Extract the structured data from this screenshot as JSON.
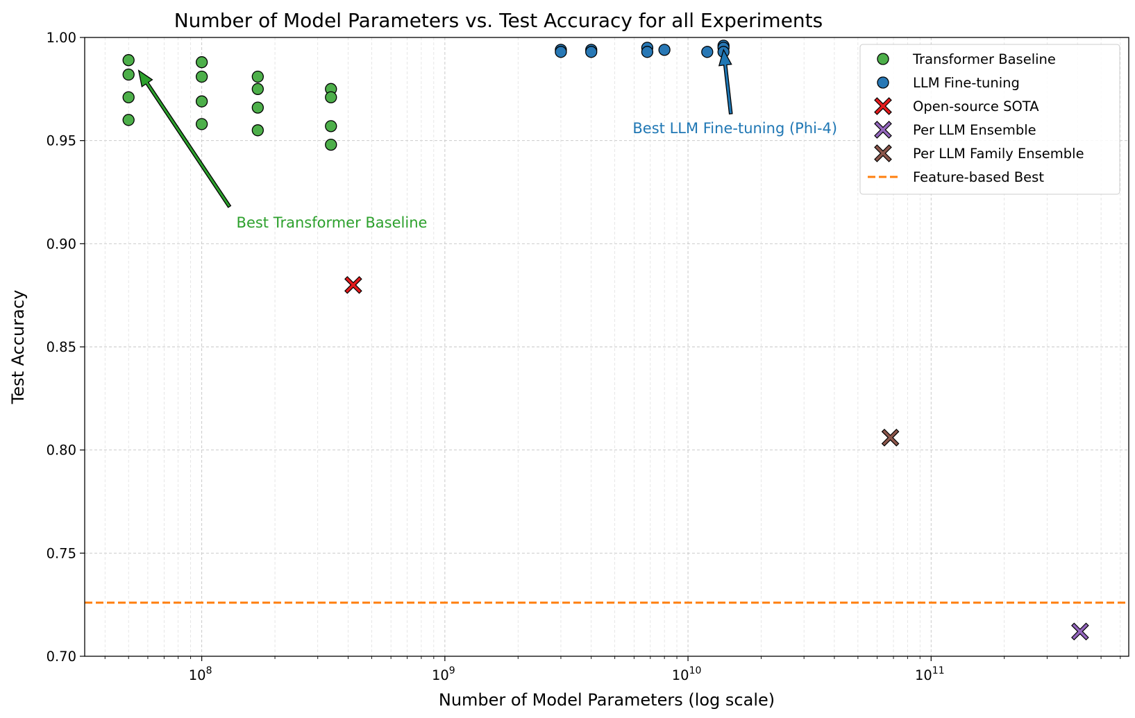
{
  "chart_data": {
    "type": "scatter",
    "title": "Number of Model Parameters vs. Test Accuracy for all Experiments",
    "xlabel": "Number of Model Parameters (log scale)",
    "ylabel": "Test Accuracy",
    "x_scale": "log",
    "xlim": [
      33000000,
      650000000000
    ],
    "ylim": [
      0.7,
      1.0
    ],
    "y_ticks": [
      0.7,
      0.75,
      0.8,
      0.85,
      0.9,
      0.95,
      1.0
    ],
    "y_tick_labels": [
      "0.70",
      "0.75",
      "0.80",
      "0.85",
      "0.90",
      "0.95",
      "1.00"
    ],
    "x_major_ticks": [
      {
        "value": 100000000,
        "base": "10",
        "exp": "8"
      },
      {
        "value": 1000000000,
        "base": "10",
        "exp": "9"
      },
      {
        "value": 10000000000,
        "base": "10",
        "exp": "10"
      },
      {
        "value": 100000000000,
        "base": "10",
        "exp": "11"
      }
    ],
    "grid": true,
    "legend_position": "top-right",
    "series": [
      {
        "name": "Transformer Baseline",
        "marker": "circle",
        "color": "#4daf4a",
        "points": [
          [
            50000000,
            0.989
          ],
          [
            50000000,
            0.982
          ],
          [
            50000000,
            0.971
          ],
          [
            50000000,
            0.96
          ],
          [
            100000000,
            0.988
          ],
          [
            100000000,
            0.981
          ],
          [
            100000000,
            0.969
          ],
          [
            100000000,
            0.958
          ],
          [
            170000000,
            0.981
          ],
          [
            170000000,
            0.975
          ],
          [
            170000000,
            0.966
          ],
          [
            170000000,
            0.955
          ],
          [
            340000000,
            0.975
          ],
          [
            340000000,
            0.971
          ],
          [
            340000000,
            0.957
          ],
          [
            340000000,
            0.948
          ]
        ]
      },
      {
        "name": "LLM Fine-tuning",
        "marker": "circle",
        "color": "#2878b5",
        "points": [
          [
            3000000000,
            0.994
          ],
          [
            3000000000,
            0.993
          ],
          [
            4000000000,
            0.994
          ],
          [
            4000000000,
            0.993
          ],
          [
            6800000000,
            0.995
          ],
          [
            6800000000,
            0.993
          ],
          [
            8000000000,
            0.994
          ],
          [
            12000000000,
            0.993
          ],
          [
            14000000000,
            0.996
          ],
          [
            14000000000,
            0.995
          ],
          [
            14000000000,
            0.993
          ]
        ]
      },
      {
        "name": "Open-source SOTA",
        "marker": "x",
        "color": "#e41a1c",
        "points": [
          [
            420000000,
            0.88
          ]
        ]
      },
      {
        "name": "Per LLM Ensemble",
        "marker": "x",
        "color": "#9467bd",
        "points": [
          [
            410000000000,
            0.712
          ]
        ]
      },
      {
        "name": "Per LLM Family Ensemble",
        "marker": "x",
        "color": "#8c564b",
        "points": [
          [
            68000000000,
            0.806
          ]
        ]
      }
    ],
    "reference_lines": [
      {
        "name": "Feature-based Best",
        "y": 0.726,
        "color": "#ff7f0e",
        "style": "dashed"
      }
    ],
    "annotations": [
      {
        "text": "Best Transformer Baseline",
        "color": "#2ca02c",
        "arrow_from": [
          130000000,
          0.918
        ],
        "arrow_to": [
          55000000,
          0.984
        ]
      },
      {
        "text": "Best LLM Fine-tuning (Phi-4)",
        "color": "#1f77b4",
        "arrow_from": [
          15000000000,
          0.963
        ],
        "arrow_to": [
          14000000000,
          0.994
        ]
      }
    ]
  }
}
